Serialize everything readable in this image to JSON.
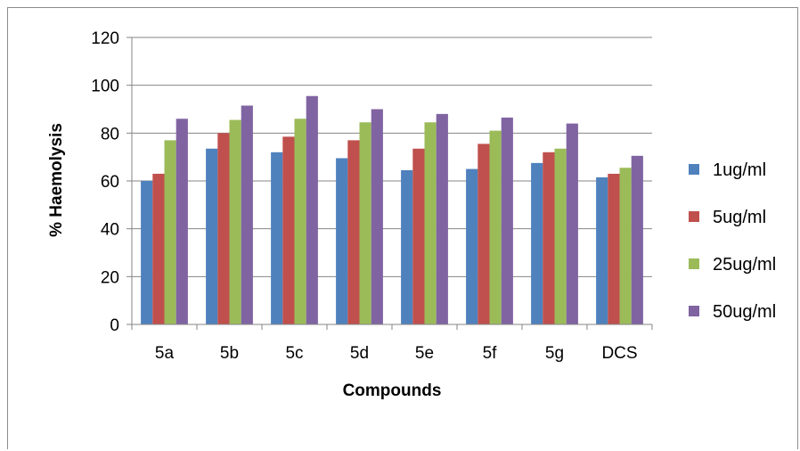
{
  "chart_data": {
    "type": "bar",
    "categories": [
      "5a",
      "5b",
      "5c",
      "5d",
      "5e",
      "5f",
      "5g",
      "DCS"
    ],
    "series": [
      {
        "name": "1ug/ml",
        "color": "#4f81bd",
        "values": [
          60,
          73.5,
          72,
          69.5,
          64.5,
          65,
          67.5,
          61.5
        ]
      },
      {
        "name": "5ug/ml",
        "color": "#c0504d",
        "values": [
          63,
          80,
          78.5,
          77,
          73.5,
          75.5,
          72,
          63
        ]
      },
      {
        "name": "25ug/ml",
        "color": "#9bbb59",
        "values": [
          77,
          85.5,
          86,
          84.5,
          84.5,
          81,
          73.5,
          65.5
        ]
      },
      {
        "name": "50ug/ml",
        "color": "#8064a2",
        "values": [
          86,
          91.5,
          95.5,
          90,
          88,
          86.5,
          84,
          70.5
        ]
      }
    ],
    "yticks": [
      "0",
      "20",
      "40",
      "60",
      "80",
      "100",
      "120"
    ],
    "ylim": [
      0,
      120
    ],
    "xlabel": "Compounds",
    "ylabel": "% Haemolysis",
    "grid": true,
    "legend_position": "right"
  }
}
